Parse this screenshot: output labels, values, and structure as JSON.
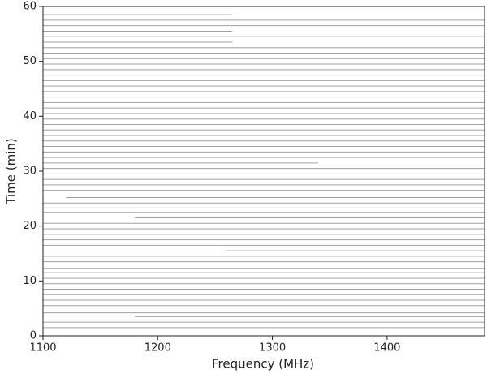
{
  "chart_data": {
    "type": "waterfall",
    "xlabel": "Frequency (MHz)",
    "ylabel": "Time (min)",
    "xlim": [
      1100,
      1485
    ],
    "xticks": [
      1100,
      1200,
      1300,
      1400
    ],
    "ylim": [
      0,
      60
    ],
    "yticks": [
      0,
      10,
      20,
      30,
      40,
      50,
      60
    ],
    "color": "#8a8a8a",
    "times": [
      1.5,
      2.5,
      3.5,
      4.2,
      5.5,
      6.5,
      7.5,
      8.5,
      9.5,
      10.5,
      11.5,
      12.3,
      13.5,
      14.5,
      15.5,
      16.5,
      17.5,
      18.5,
      19.5,
      20.5,
      21.5,
      22.5,
      23.3,
      24.2,
      25.2,
      26.5,
      27.5,
      28.5,
      29.5,
      30.5,
      31.5,
      32.5,
      33.5,
      34.5,
      35.5,
      36.5,
      37.5,
      38.5,
      39.5,
      40.5,
      41.5,
      42.5,
      43.5,
      44.5,
      45.5,
      46.5,
      47.5,
      48.5,
      49.5,
      50.5,
      51.5,
      52.5,
      53.5,
      54.5,
      55.5,
      56.5,
      57.5,
      58.5
    ],
    "starts": [
      1100,
      1100,
      1180,
      1100,
      1100,
      1100,
      1100,
      1100,
      1100,
      1100,
      1100,
      1100,
      1100,
      1100,
      1260,
      1100,
      1100,
      1100,
      1100,
      1100,
      1180,
      1100,
      1100,
      1100,
      1120,
      1100,
      1100,
      1100,
      1100,
      1100,
      1100,
      1100,
      1100,
      1100,
      1100,
      1100,
      1100,
      1100,
      1100,
      1100,
      1100,
      1100,
      1100,
      1100,
      1100,
      1100,
      1100,
      1100,
      1100,
      1100,
      1100,
      1100,
      1100,
      1100,
      1100,
      1100,
      1100,
      1100
    ],
    "ends": [
      1485,
      1485,
      1485,
      1485,
      1485,
      1485,
      1485,
      1485,
      1485,
      1485,
      1485,
      1485,
      1485,
      1485,
      1485,
      1485,
      1485,
      1485,
      1485,
      1485,
      1485,
      1485,
      1485,
      1485,
      1485,
      1485,
      1485,
      1485,
      1485,
      1485,
      1340,
      1485,
      1485,
      1485,
      1485,
      1485,
      1485,
      1485,
      1485,
      1485,
      1485,
      1485,
      1485,
      1485,
      1485,
      1485,
      1485,
      1485,
      1485,
      1485,
      1485,
      1485,
      1265,
      1485,
      1265,
      1485,
      1485,
      1265
    ]
  }
}
